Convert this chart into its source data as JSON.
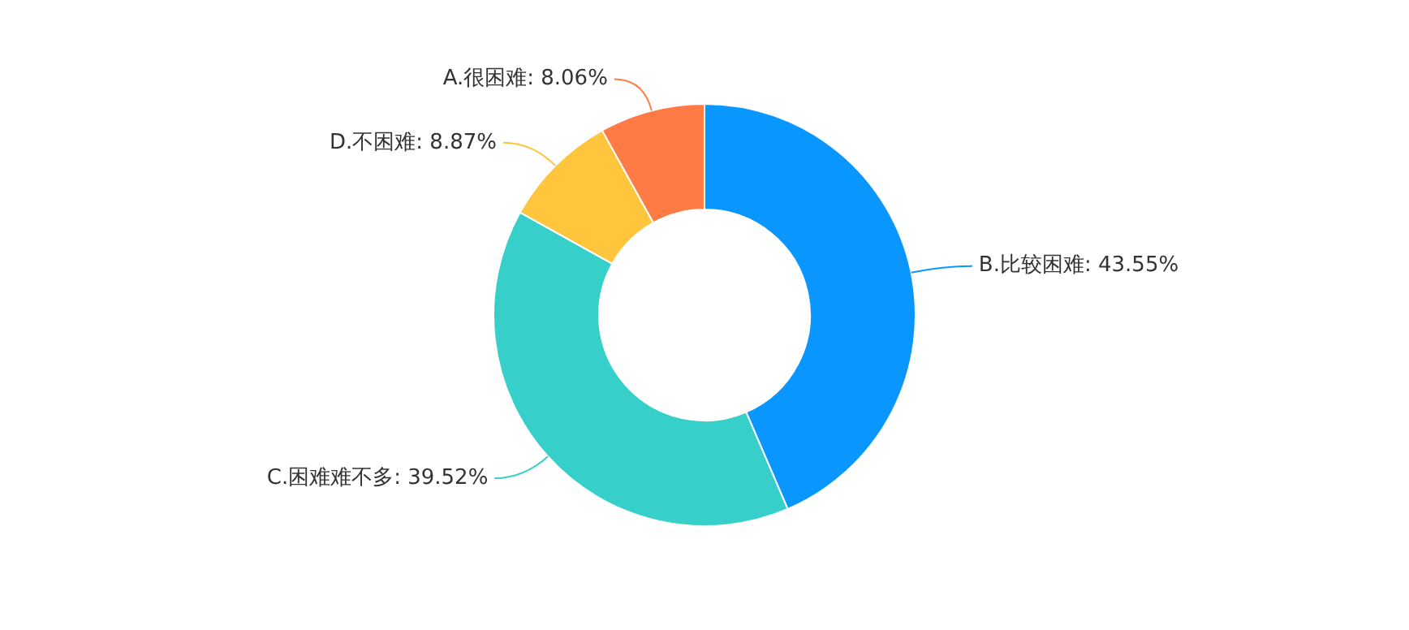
{
  "chart_data": {
    "type": "donut",
    "categories": [
      "B.比较困难",
      "C.困难难不多",
      "D.不困难",
      "A.很困难"
    ],
    "values": [
      43.55,
      39.52,
      8.87,
      8.06
    ],
    "value_labels": [
      "43.55%",
      "39.52%",
      "8.87%",
      "8.06%"
    ],
    "colors": [
      "#0a96ff",
      "#36cfc9",
      "#ffc53d",
      "#ff7a45"
    ],
    "legend": false
  }
}
